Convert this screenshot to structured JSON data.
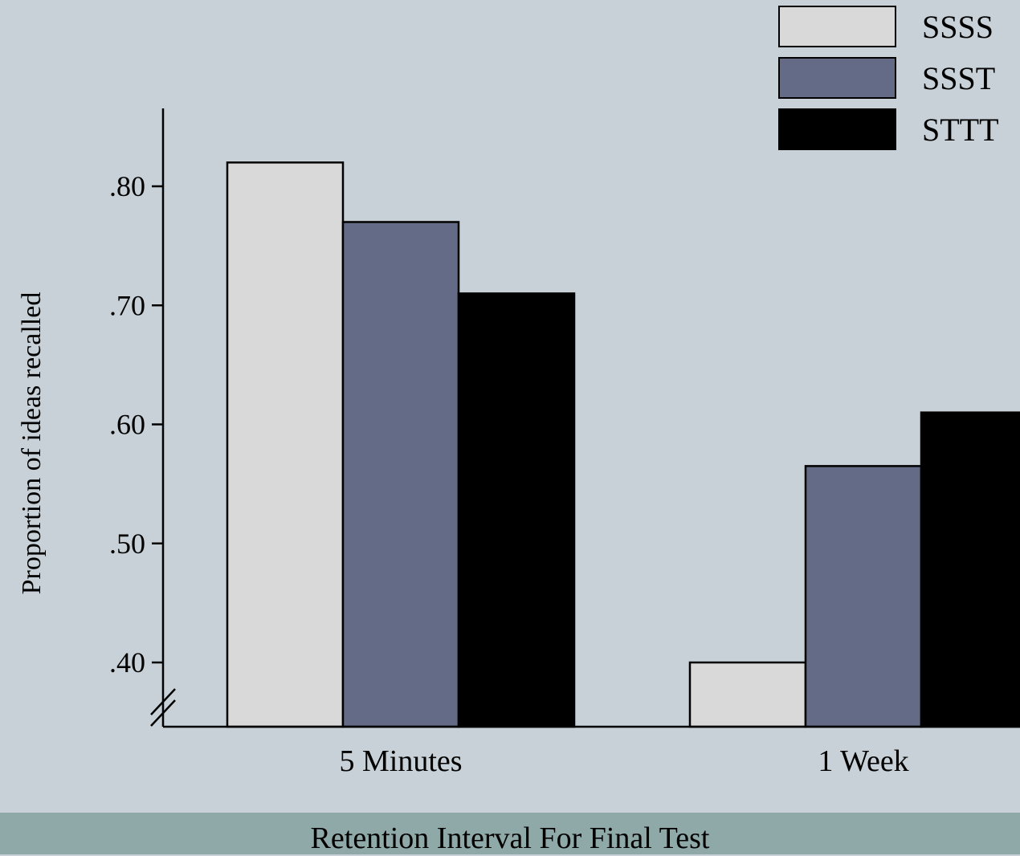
{
  "chart_data": {
    "type": "bar",
    "categories": [
      "5 Minutes",
      "1 Week"
    ],
    "series": [
      {
        "name": "SSSS",
        "values": [
          0.82,
          0.4
        ],
        "color": "#d9d9d9"
      },
      {
        "name": "SSST",
        "values": [
          0.77,
          0.565
        ],
        "color": "#646b87"
      },
      {
        "name": "STTT",
        "values": [
          0.71,
          0.61
        ],
        "color": "#000000"
      }
    ],
    "xlabel": "Retention Interval For Final Test",
    "ylabel": "Proportion of ideas recalled",
    "yticks": [
      0.8,
      0.7,
      0.6,
      0.5,
      0.4
    ],
    "ytick_labels": [
      ".80",
      ".70",
      ".60",
      ".50",
      ".40"
    ],
    "ylim": [
      0.35,
      0.86
    ],
    "axis_break": true,
    "grid": false,
    "legend_position": "top-right"
  }
}
